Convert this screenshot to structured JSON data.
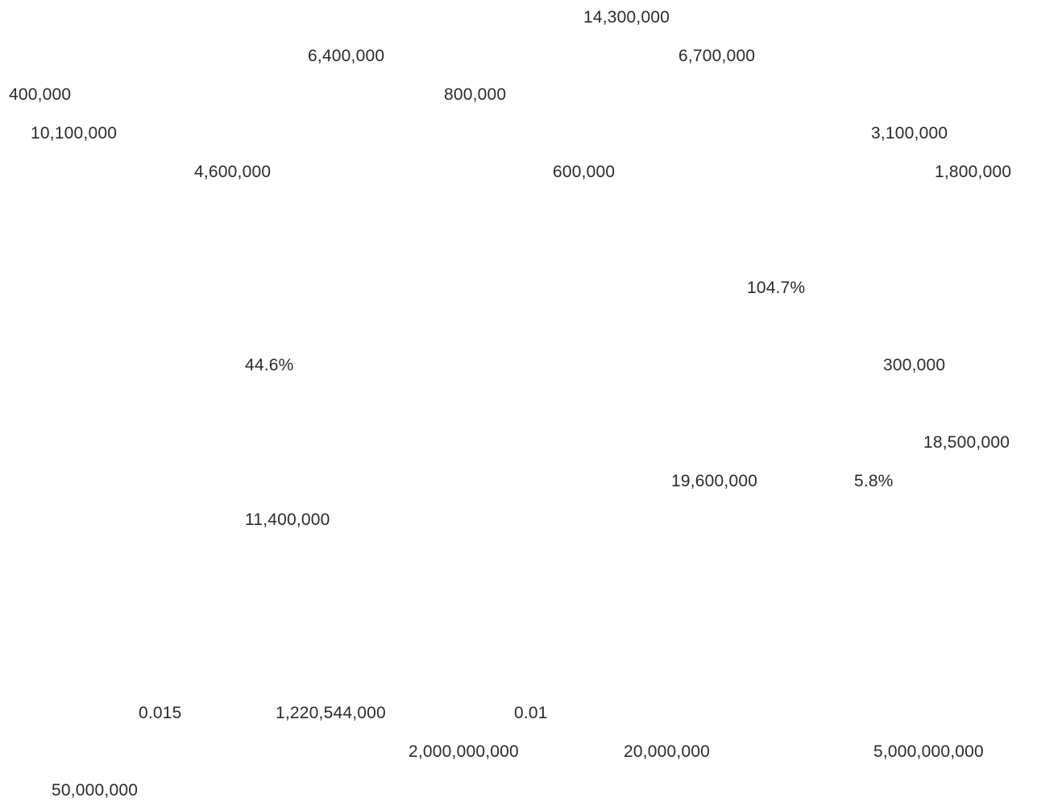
{
  "labels": [
    "14,300,000",
    "6,400,000",
    "6,700,000",
    "400,000",
    "800,000",
    "10,100,000",
    "3,100,000",
    "4,600,000",
    "600,000",
    "1,800,000",
    "104.7%",
    "44.6%",
    "300,000",
    "18,500,000",
    "19,600,000",
    "5.8%",
    "11,400,000",
    "0.015",
    "1,220,544,000",
    "0.01",
    "2,000,000,000",
    "20,000,000",
    "5,000,000,000",
    "50,000,000"
  ]
}
